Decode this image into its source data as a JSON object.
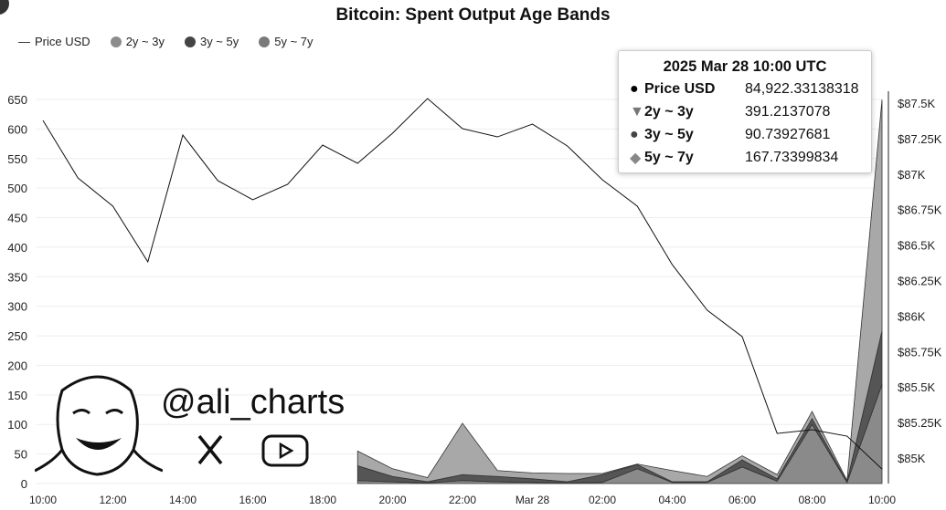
{
  "chart_data": {
    "type": "area",
    "title": "Bitcoin: Spent Output Age Bands",
    "x": [
      "10:00",
      "11:00",
      "12:00",
      "13:00",
      "14:00",
      "15:00",
      "16:00",
      "17:00",
      "18:00",
      "19:00",
      "20:00",
      "21:00",
      "22:00",
      "23:00",
      "Mar 28",
      "01:00",
      "02:00",
      "03:00",
      "04:00",
      "05:00",
      "06:00",
      "07:00",
      "08:00",
      "09:00",
      "10:00"
    ],
    "x_tick_labels": [
      "10:00",
      "12:00",
      "14:00",
      "16:00",
      "18:00",
      "20:00",
      "22:00",
      "Mar 28",
      "02:00",
      "04:00",
      "06:00",
      "08:00",
      "10:00"
    ],
    "y_left": {
      "ticks": [
        0,
        50,
        100,
        150,
        200,
        250,
        300,
        350,
        400,
        450,
        500,
        550,
        600,
        650
      ],
      "range": [
        0,
        650
      ]
    },
    "y_right": {
      "ticks": [
        "$85K",
        "$85.25K",
        "$85.5K",
        "$85.75K",
        "$86K",
        "$86.25K",
        "$86.5K",
        "$86.75K",
        "$87K",
        "$87.25K",
        "$87.5K"
      ],
      "range": [
        84850,
        87600
      ]
    },
    "stacked": true,
    "grid": true,
    "legend": "top-left",
    "series": [
      {
        "name": "Price USD",
        "kind": "line",
        "axis": "right",
        "color": "#111111",
        "values": [
          87378,
          86973,
          86774,
          86382,
          87275,
          86954,
          86819,
          86928,
          87204,
          87076,
          87288,
          87532,
          87320,
          87262,
          87352,
          87198,
          86960,
          86774,
          86362,
          86041,
          85855,
          85173,
          85199,
          85154,
          84922.33
        ]
      },
      {
        "name": "5y ~ 7y",
        "kind": "area",
        "axis": "left",
        "color": "#8a8a8a",
        "values": [
          null,
          null,
          null,
          null,
          null,
          null,
          null,
          null,
          null,
          5,
          3,
          1,
          5,
          3,
          2,
          1,
          2,
          25,
          2,
          2,
          28,
          4,
          100,
          2,
          167.73
        ]
      },
      {
        "name": "3y ~ 5y",
        "kind": "area",
        "axis": "left",
        "color": "#555555",
        "values": [
          null,
          null,
          null,
          null,
          null,
          null,
          null,
          null,
          null,
          25,
          9,
          2,
          10,
          9,
          6,
          2,
          13,
          7,
          1,
          1,
          12,
          4,
          10,
          1,
          90.74
        ]
      },
      {
        "name": "2y ~ 3y",
        "kind": "area",
        "axis": "left",
        "color": "#a8a8a8",
        "values": [
          null,
          null,
          null,
          null,
          null,
          null,
          null,
          null,
          null,
          25,
          13,
          7,
          87,
          10,
          10,
          14,
          2,
          1,
          19,
          9,
          7,
          7,
          12,
          2,
          391.21
        ]
      }
    ]
  },
  "legend": {
    "price": "Price USD",
    "s1": "2y ~ 3y",
    "s2": "3y ~ 5y",
    "s3": "5y ~ 7y"
  },
  "tooltip": {
    "header": "2025 Mar 28 10:00 UTC",
    "rows": [
      {
        "label": "Price USD",
        "value": "84,922.33138318",
        "marker": "●"
      },
      {
        "label": "2y ~ 3y",
        "value": "391.2137078",
        "marker": "▼"
      },
      {
        "label": "3y ~ 5y",
        "value": "90.73927681",
        "marker": "●"
      },
      {
        "label": "5y ~ 7y",
        "value": "167.73399834",
        "marker": "◆"
      }
    ]
  },
  "watermark": {
    "handle": "@ali_charts"
  }
}
